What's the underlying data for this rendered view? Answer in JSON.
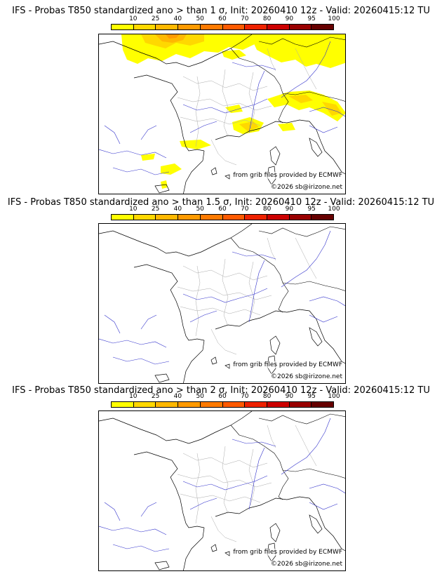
{
  "colorbar": {
    "ticks": [
      "10",
      "25",
      "40",
      "50",
      "60",
      "70",
      "80",
      "90",
      "95",
      "100"
    ],
    "colors": [
      "#ffff00",
      "#ffd800",
      "#ffb800",
      "#ff9a00",
      "#ff7a00",
      "#ff5a00",
      "#ee2200",
      "#cc0000",
      "#990000",
      "#660000"
    ]
  },
  "credit": "from grib files provided by ECMWF",
  "copyright": "©2026 sb@irizone.net",
  "panels": [
    {
      "title": "IFS - Probas T850  standardized ano > than 1 σ, Init: 20260410 12z - Valid: 20260415:12 TU"
    },
    {
      "title": "IFS - Probas T850  standardized ano > than 1.5 σ, Init: 20260410 12z - Valid: 20260415:12 TU"
    },
    {
      "title": "IFS - Probas T850  standardized ano > than 2 σ, Init: 20260410 12z - Valid: 20260415:12 TU"
    }
  ]
}
